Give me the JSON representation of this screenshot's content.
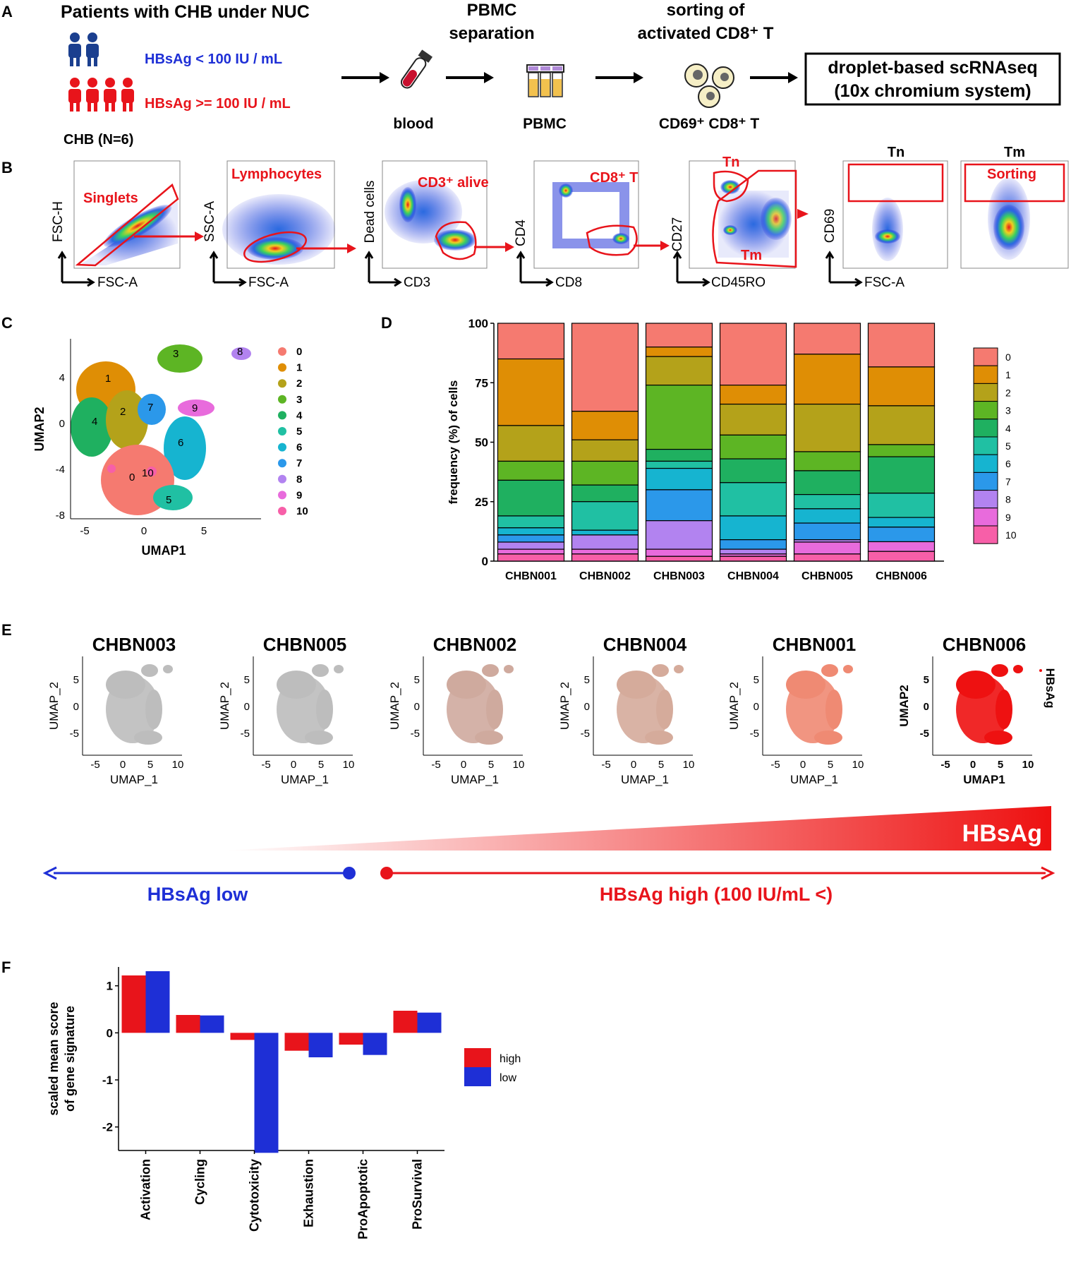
{
  "colors": {
    "red": "#e8141b",
    "blue": "#1e2fd6",
    "navy": "#1b3f8f",
    "gray": "#bfbfbf",
    "clusters": [
      "#f57a70",
      "#df8e05",
      "#b4a21a",
      "#5db524",
      "#1fb060",
      "#20c0a3",
      "#16b4d0",
      "#2b98ea",
      "#b283f0",
      "#e86bdc",
      "#f75fa8"
    ]
  },
  "panelA": {
    "letter": "A",
    "title": "Patients with CHB under NUC",
    "low_label": "HBsAg < 100 IU / mL",
    "high_label": "HBsAg >= 100 IU / mL",
    "chb_label": "CHB (N=6)",
    "step1": "blood",
    "step2_title": [
      "PBMC",
      "separation"
    ],
    "step2": "PBMC",
    "step3_title": [
      "sorting of",
      "activated CD8⁺ T"
    ],
    "step3": "CD69⁺ CD8⁺ T",
    "final_box": [
      "droplet-based scRNAseq",
      "(10x chromium system)"
    ]
  },
  "panelB": {
    "letter": "B",
    "plots": [
      {
        "y": "FSC-H",
        "x": "FSC-A",
        "gate": "Singlets"
      },
      {
        "y": "SSC-A",
        "x": "FSC-A",
        "gate": "Lymphocytes"
      },
      {
        "y": "Dead cells",
        "x": "CD3",
        "gate": "CD3⁺ alive"
      },
      {
        "y": "CD4",
        "x": "CD8",
        "gate": "CD8⁺ T"
      },
      {
        "y": "CD27",
        "x": "CD45RO",
        "gate": "Tn",
        "gate2": "Tm"
      },
      {
        "y": "CD69",
        "x": "FSC-A",
        "title": "Tn"
      },
      {
        "title": "Tm",
        "gate": "Sorting"
      }
    ]
  },
  "panelC": {
    "letter": "C",
    "xlabel": "UMAP1",
    "ylabel": "UMAP2",
    "xticks": [
      "-5",
      "0",
      "5"
    ],
    "yticks": [
      "4",
      "0",
      "-4",
      "-8"
    ],
    "clusters": [
      "0",
      "1",
      "2",
      "3",
      "4",
      "5",
      "6",
      "7",
      "8",
      "9",
      "10"
    ]
  },
  "chart_data": [
    {
      "type": "bar",
      "title": "",
      "stacked": true,
      "ylabel": "frequency (%) of cells",
      "ylim": [
        0,
        100
      ],
      "yticks": [
        "0",
        "25",
        "50",
        "75",
        "100"
      ],
      "categories": [
        "CHBN001",
        "CHBN002",
        "CHBN003",
        "CHBN004",
        "CHBN005",
        "CHBN006"
      ],
      "legend": [
        "0",
        "1",
        "2",
        "3",
        "4",
        "5",
        "6",
        "7",
        "8",
        "9",
        "10"
      ],
      "series": [
        {
          "name": "0",
          "values": [
            15,
            37,
            10,
            26,
            13,
            18
          ]
        },
        {
          "name": "1",
          "values": [
            28,
            12,
            4,
            8,
            21,
            16
          ]
        },
        {
          "name": "2",
          "values": [
            15,
            9,
            12,
            13,
            20,
            16
          ]
        },
        {
          "name": "3",
          "values": [
            8,
            10,
            27,
            10,
            8,
            5
          ]
        },
        {
          "name": "4",
          "values": [
            15,
            7,
            5,
            10,
            10,
            15
          ]
        },
        {
          "name": "5",
          "values": [
            5,
            12,
            3,
            14,
            6,
            10
          ]
        },
        {
          "name": "6",
          "values": [
            3,
            2,
            9,
            10,
            6,
            4
          ]
        },
        {
          "name": "7",
          "values": [
            3,
            0,
            13,
            4,
            7,
            6
          ]
        },
        {
          "name": "8",
          "values": [
            3,
            6,
            12,
            2,
            1,
            0
          ]
        },
        {
          "name": "9",
          "values": [
            2,
            2,
            3,
            1,
            5,
            4
          ]
        },
        {
          "name": "10",
          "values": [
            3,
            3,
            2,
            2,
            3,
            4
          ]
        }
      ]
    },
    {
      "type": "bar",
      "title": "",
      "ylabel": "scaled mean score of gene signature",
      "ylim": [
        -2.5,
        1.4
      ],
      "yticks": [
        "1",
        "0",
        "-1",
        "-2"
      ],
      "categories": [
        "Activation",
        "Cycling",
        "Cytotoxicity",
        "Exhaustion",
        "ProApoptotic",
        "ProSurvival"
      ],
      "series": [
        {
          "name": "high",
          "values": [
            1.22,
            0.38,
            -0.15,
            -0.38,
            -0.25,
            0.47
          ]
        },
        {
          "name": "low",
          "values": [
            1.31,
            0.37,
            -2.55,
            -0.52,
            -0.47,
            0.43
          ]
        }
      ]
    }
  ],
  "panelE": {
    "letter": "E",
    "plots": [
      {
        "title": "CHBN003",
        "color": "#bdbdbd"
      },
      {
        "title": "CHBN005",
        "color": "#bdbdbd"
      },
      {
        "title": "CHBN002",
        "color": "#cfaa9e"
      },
      {
        "title": "CHBN004",
        "color": "#d5ab9b"
      },
      {
        "title": "CHBN001",
        "color": "#ef8a73"
      },
      {
        "title": "CHBN006",
        "color": "#ee1111"
      }
    ],
    "xlabel": "UMAP_1",
    "ylabel": "UMAP_2",
    "last_xlabel": "UMAP1",
    "last_ylabel": "UMAP2",
    "side_label": "HBsAg",
    "xticks": [
      "-5",
      "0",
      "5",
      "10"
    ],
    "yticks": [
      "5",
      "0",
      "-5"
    ],
    "gradient_label": "HBsAg",
    "low_arrow": "HBsAg low",
    "high_arrow": "HBsAg high (100 IU/mL <)"
  },
  "panelF": {
    "letter": "F",
    "legend": [
      "high",
      "low"
    ]
  },
  "panelD": {
    "letter": "D"
  }
}
